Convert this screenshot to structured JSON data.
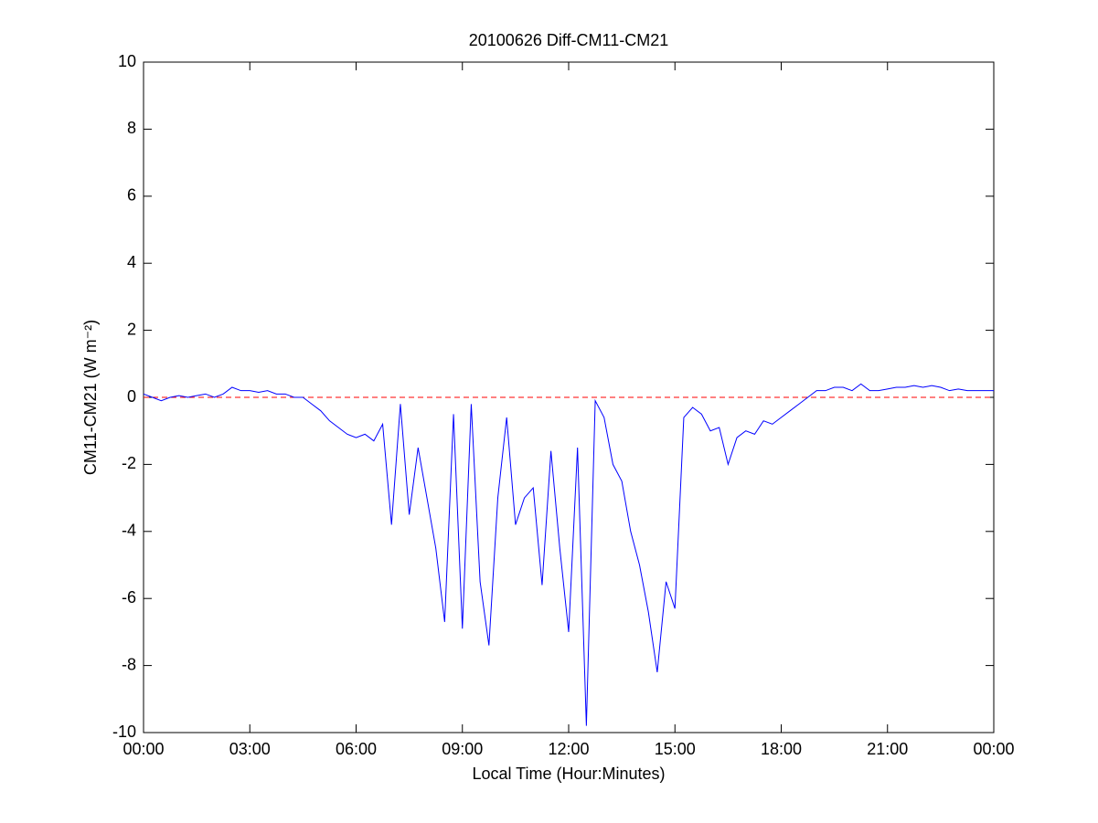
{
  "chart_data": {
    "type": "line",
    "title": "20100626 Diff-CM11-CM21",
    "xlabel": "Local Time (Hour:Minutes)",
    "ylabel": "CM11-CM21 (W m⁻²)",
    "x": [
      0,
      0.25,
      0.5,
      0.75,
      1,
      1.25,
      1.5,
      1.75,
      2,
      2.25,
      2.5,
      2.75,
      3,
      3.25,
      3.5,
      3.75,
      4,
      4.25,
      4.5,
      4.75,
      5,
      5.25,
      5.5,
      5.75,
      6,
      6.25,
      6.5,
      6.75,
      7,
      7.25,
      7.5,
      7.75,
      8,
      8.25,
      8.5,
      8.75,
      9,
      9.25,
      9.5,
      9.75,
      10,
      10.25,
      10.5,
      10.75,
      11,
      11.25,
      11.5,
      11.75,
      12,
      12.25,
      12.5,
      12.75,
      13,
      13.25,
      13.5,
      13.75,
      14,
      14.25,
      14.5,
      14.75,
      15,
      15.25,
      15.5,
      15.75,
      16,
      16.25,
      16.5,
      16.75,
      17,
      17.25,
      17.5,
      17.75,
      18,
      18.25,
      18.5,
      18.75,
      19,
      19.25,
      19.5,
      19.75,
      20,
      20.25,
      20.5,
      20.75,
      21,
      21.25,
      21.5,
      21.75,
      22,
      22.25,
      22.5,
      22.75,
      23,
      23.25,
      23.5,
      23.75,
      24
    ],
    "series": [
      {
        "color": "#0000ff",
        "values": [
          0.1,
          0,
          -0.1,
          0,
          0.05,
          0,
          0.05,
          0.1,
          0,
          0.1,
          0.3,
          0.2,
          0.2,
          0.15,
          0.2,
          0.1,
          0.1,
          0,
          0,
          -0.2,
          -0.4,
          -0.7,
          -0.9,
          -1.1,
          -1.2,
          -1.1,
          -1.3,
          -0.8,
          -3.8,
          -0.2,
          -3.5,
          -1.5,
          -3,
          -4.5,
          -6.7,
          -0.5,
          -6.9,
          -0.2,
          -5.5,
          -7.4,
          -3,
          -0.6,
          -3.8,
          -3,
          -2.7,
          -5.6,
          -1.6,
          -4.5,
          -7,
          -1.5,
          -9.8,
          -0.1,
          -0.6,
          -2,
          -2.5,
          -4,
          -5,
          -6.4,
          -8.2,
          -5.5,
          -6.3,
          -0.6,
          -0.3,
          -0.5,
          -1,
          -0.9,
          -2,
          -1.2,
          -1,
          -1.1,
          -0.7,
          -0.8,
          -0.6,
          -0.4,
          -0.2,
          0,
          0.2,
          0.2,
          0.3,
          0.3,
          0.2,
          0.4,
          0.2,
          0.2,
          0.25,
          0.3,
          0.3,
          0.35,
          0.3,
          0.35,
          0.3,
          0.2,
          0.25,
          0.2,
          0.2,
          0.2,
          0.2
        ]
      }
    ],
    "reference_line": {
      "value": 0,
      "color": "#ff0000"
    },
    "xlim": [
      0,
      24
    ],
    "xticks": [
      {
        "value": 0,
        "label": "00:00"
      },
      {
        "value": 3,
        "label": "03:00"
      },
      {
        "value": 6,
        "label": "06:00"
      },
      {
        "value": 9,
        "label": "09:00"
      },
      {
        "value": 12,
        "label": "12:00"
      },
      {
        "value": 15,
        "label": "15:00"
      },
      {
        "value": 18,
        "label": "18:00"
      },
      {
        "value": 21,
        "label": "21:00"
      },
      {
        "value": 24,
        "label": "00:00"
      }
    ],
    "ylim": [
      -10,
      10
    ],
    "yticks": [
      -10,
      -8,
      -6,
      -4,
      -2,
      0,
      2,
      4,
      6,
      8,
      10
    ],
    "grid": false
  }
}
